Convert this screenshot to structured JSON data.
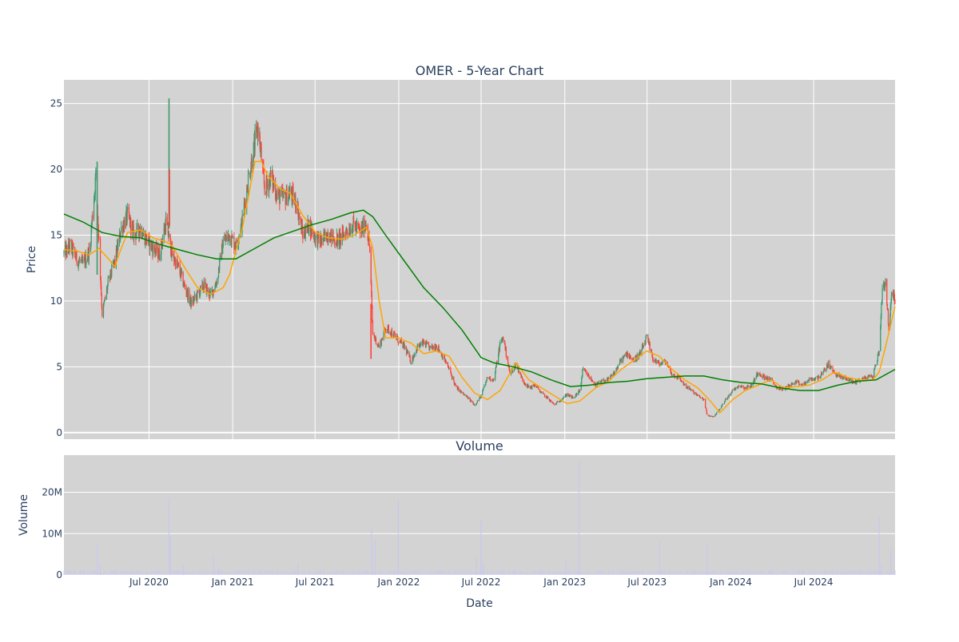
{
  "chart": {
    "title": "OMER - 5-Year Chart",
    "price_panel": {
      "ylabel": "Price",
      "ylim": [
        -0.5,
        26.8
      ],
      "yticks": [
        0,
        5,
        10,
        15,
        20,
        25
      ],
      "background": "#d3d3d3",
      "grid": true
    },
    "volume_panel": {
      "title": "Volume",
      "ylabel": "Volume",
      "ylim": [
        0,
        29000000
      ],
      "yticks": [
        0,
        10000000,
        20000000
      ],
      "ytick_labels": [
        "0",
        "10M",
        "20M"
      ],
      "background": "#d3d3d3",
      "bar_color": "#c8c8f0"
    },
    "xlabel": "Date",
    "x_range": [
      "2019-12-27",
      "2024-12-27"
    ],
    "x_ticks": [
      "2020-07-01",
      "2021-01-01",
      "2021-07-01",
      "2022-01-01",
      "2022-07-01",
      "2023-01-01",
      "2023-07-01",
      "2024-01-01",
      "2024-07-01"
    ],
    "x_tick_labels": [
      "Jul 2020",
      "Jan 2021",
      "Jul 2021",
      "Jan 2022",
      "Jul 2022",
      "Jan 2023",
      "Jul 2023",
      "Jan 2024",
      "Jul 2024"
    ],
    "colors": {
      "up": "#3d9970",
      "down": "#ff4136",
      "ma_short": "#ffa500",
      "ma_long": "#008000",
      "grid": "#ffffff",
      "text": "#2a3f5f"
    }
  },
  "chart_data": [
    {
      "type": "candlestick",
      "panel": "price",
      "close_path": [
        [
          "2019-12-27",
          13.6
        ],
        [
          "2020-01-10",
          14.2
        ],
        [
          "2020-01-24",
          13.2
        ],
        [
          "2020-02-07",
          12.8
        ],
        [
          "2020-02-21",
          13.8
        ],
        [
          "2020-03-06",
          19.5
        ],
        [
          "2020-03-13",
          14.5
        ],
        [
          "2020-03-20",
          9.0
        ],
        [
          "2020-04-03",
          11.5
        ],
        [
          "2020-04-17",
          13.0
        ],
        [
          "2020-05-01",
          15.5
        ],
        [
          "2020-05-15",
          16.5
        ],
        [
          "2020-05-29",
          15.0
        ],
        [
          "2020-06-12",
          15.5
        ],
        [
          "2020-06-26",
          14.6
        ],
        [
          "2020-07-10",
          14.0
        ],
        [
          "2020-07-24",
          13.5
        ],
        [
          "2020-08-07",
          16.0
        ],
        [
          "2020-08-21",
          13.5
        ],
        [
          "2020-09-04",
          12.5
        ],
        [
          "2020-09-18",
          11.0
        ],
        [
          "2020-10-02",
          9.8
        ],
        [
          "2020-10-16",
          10.5
        ],
        [
          "2020-10-30",
          11.2
        ],
        [
          "2020-11-13",
          10.4
        ],
        [
          "2020-11-27",
          11.5
        ],
        [
          "2020-12-11",
          14.5
        ],
        [
          "2020-12-25",
          15.0
        ],
        [
          "2021-01-08",
          14.2
        ],
        [
          "2021-01-22",
          16.0
        ],
        [
          "2021-02-05",
          19.5
        ],
        [
          "2021-02-19",
          22.0
        ],
        [
          "2021-02-26",
          23.2
        ],
        [
          "2021-03-12",
          18.5
        ],
        [
          "2021-03-26",
          19.5
        ],
        [
          "2021-04-09",
          18.0
        ],
        [
          "2021-04-23",
          17.8
        ],
        [
          "2021-05-07",
          18.2
        ],
        [
          "2021-05-21",
          17.5
        ],
        [
          "2021-06-04",
          15.0
        ],
        [
          "2021-06-18",
          15.8
        ],
        [
          "2021-07-02",
          14.8
        ],
        [
          "2021-07-16",
          14.5
        ],
        [
          "2021-07-30",
          15.2
        ],
        [
          "2021-08-13",
          14.6
        ],
        [
          "2021-08-27",
          14.8
        ],
        [
          "2021-09-10",
          15.4
        ],
        [
          "2021-09-24",
          15.8
        ],
        [
          "2021-10-08",
          15.2
        ],
        [
          "2021-10-22",
          16.0
        ],
        [
          "2021-10-29",
          14.0
        ],
        [
          "2021-11-05",
          7.5
        ],
        [
          "2021-11-19",
          6.5
        ],
        [
          "2021-12-03",
          8.0
        ],
        [
          "2021-12-17",
          7.6
        ],
        [
          "2021-12-31",
          7.0
        ],
        [
          "2022-01-14",
          6.5
        ],
        [
          "2022-01-28",
          5.4
        ],
        [
          "2022-02-11",
          6.5
        ],
        [
          "2022-02-25",
          6.8
        ],
        [
          "2022-03-11",
          6.4
        ],
        [
          "2022-03-25",
          6.6
        ],
        [
          "2022-04-08",
          5.8
        ],
        [
          "2022-04-22",
          4.8
        ],
        [
          "2022-05-06",
          3.5
        ],
        [
          "2022-05-20",
          3.0
        ],
        [
          "2022-06-03",
          2.6
        ],
        [
          "2022-06-17",
          2.1
        ],
        [
          "2022-07-01",
          2.8
        ],
        [
          "2022-07-15",
          4.2
        ],
        [
          "2022-07-29",
          4.0
        ],
        [
          "2022-08-12",
          6.8
        ],
        [
          "2022-08-19",
          7.2
        ],
        [
          "2022-09-02",
          4.5
        ],
        [
          "2022-09-16",
          5.2
        ],
        [
          "2022-09-30",
          4.0
        ],
        [
          "2022-10-14",
          3.4
        ],
        [
          "2022-10-28",
          3.6
        ],
        [
          "2022-11-11",
          3.0
        ],
        [
          "2022-11-25",
          2.6
        ],
        [
          "2022-12-09",
          2.1
        ],
        [
          "2022-12-23",
          2.5
        ],
        [
          "2023-01-06",
          2.9
        ],
        [
          "2023-01-20",
          2.6
        ],
        [
          "2023-02-03",
          3.2
        ],
        [
          "2023-02-10",
          4.8
        ],
        [
          "2023-02-24",
          4.2
        ],
        [
          "2023-03-10",
          3.6
        ],
        [
          "2023-03-24",
          3.9
        ],
        [
          "2023-04-07",
          4.0
        ],
        [
          "2023-04-21",
          4.6
        ],
        [
          "2023-05-05",
          5.5
        ],
        [
          "2023-05-19",
          6.0
        ],
        [
          "2023-06-02",
          5.5
        ],
        [
          "2023-06-16",
          6.0
        ],
        [
          "2023-06-30",
          7.2
        ],
        [
          "2023-07-14",
          5.6
        ],
        [
          "2023-07-28",
          5.2
        ],
        [
          "2023-08-11",
          5.4
        ],
        [
          "2023-08-25",
          4.4
        ],
        [
          "2023-09-08",
          4.2
        ],
        [
          "2023-09-22",
          3.6
        ],
        [
          "2023-10-06",
          3.2
        ],
        [
          "2023-10-20",
          2.8
        ],
        [
          "2023-11-03",
          2.5
        ],
        [
          "2023-11-10",
          1.3
        ],
        [
          "2023-11-24",
          1.2
        ],
        [
          "2023-12-08",
          1.8
        ],
        [
          "2023-12-22",
          2.6
        ],
        [
          "2024-01-05",
          3.2
        ],
        [
          "2024-01-19",
          3.6
        ],
        [
          "2024-02-02",
          3.4
        ],
        [
          "2024-02-16",
          3.6
        ],
        [
          "2024-03-01",
          4.6
        ],
        [
          "2024-03-15",
          4.2
        ],
        [
          "2024-03-29",
          4.0
        ],
        [
          "2024-04-12",
          3.4
        ],
        [
          "2024-04-26",
          3.3
        ],
        [
          "2024-05-10",
          3.6
        ],
        [
          "2024-05-24",
          3.8
        ],
        [
          "2024-06-07",
          3.6
        ],
        [
          "2024-06-21",
          4.0
        ],
        [
          "2024-07-05",
          4.1
        ],
        [
          "2024-07-19",
          4.4
        ],
        [
          "2024-08-02",
          5.2
        ],
        [
          "2024-08-16",
          4.5
        ],
        [
          "2024-08-30",
          4.2
        ],
        [
          "2024-09-13",
          4.1
        ],
        [
          "2024-09-27",
          3.8
        ],
        [
          "2024-10-11",
          4.0
        ],
        [
          "2024-10-25",
          4.2
        ],
        [
          "2024-11-08",
          4.3
        ],
        [
          "2024-11-22",
          6.2
        ],
        [
          "2024-11-29",
          11.0
        ],
        [
          "2024-12-06",
          11.5
        ],
        [
          "2024-12-13",
          8.0
        ],
        [
          "2024-12-20",
          10.5
        ],
        [
          "2024-12-27",
          10.2
        ]
      ],
      "spikes": [
        [
          "2020-03-09",
          12.0,
          20.6,
          "up"
        ],
        [
          "2020-08-14",
          15.5,
          25.4,
          "up"
        ],
        [
          "2020-08-15",
          15.7,
          20.0,
          "down"
        ],
        [
          "2021-11-01",
          5.6,
          9.8,
          "down"
        ]
      ]
    },
    {
      "type": "line",
      "panel": "price",
      "series_role": "short moving average",
      "points": [
        [
          "2019-12-27",
          13.9
        ],
        [
          "2020-01-24",
          13.8
        ],
        [
          "2020-02-21",
          13.5
        ],
        [
          "2020-03-13",
          14.0
        ],
        [
          "2020-04-03",
          13.2
        ],
        [
          "2020-04-17",
          12.6
        ],
        [
          "2020-05-01",
          14.0
        ],
        [
          "2020-05-15",
          15.2
        ],
        [
          "2020-06-12",
          15.4
        ],
        [
          "2020-07-10",
          14.8
        ],
        [
          "2020-08-07",
          14.5
        ],
        [
          "2020-08-21",
          14.2
        ],
        [
          "2020-09-18",
          12.5
        ],
        [
          "2020-10-16",
          11.0
        ],
        [
          "2020-11-13",
          10.5
        ],
        [
          "2020-12-11",
          11.0
        ],
        [
          "2020-12-25",
          12.0
        ],
        [
          "2021-01-08",
          13.8
        ],
        [
          "2021-01-22",
          15.5
        ],
        [
          "2021-02-05",
          18.0
        ],
        [
          "2021-02-19",
          20.6
        ],
        [
          "2021-03-05",
          20.6
        ],
        [
          "2021-03-19",
          19.5
        ],
        [
          "2021-04-16",
          18.5
        ],
        [
          "2021-05-07",
          18.2
        ],
        [
          "2021-06-04",
          16.5
        ],
        [
          "2021-07-02",
          15.2
        ],
        [
          "2021-07-30",
          14.8
        ],
        [
          "2021-08-27",
          14.7
        ],
        [
          "2021-09-24",
          15.0
        ],
        [
          "2021-10-22",
          15.6
        ],
        [
          "2021-11-05",
          14.0
        ],
        [
          "2021-11-19",
          10.0
        ],
        [
          "2021-12-03",
          7.2
        ],
        [
          "2021-12-31",
          7.2
        ],
        [
          "2022-01-28",
          6.8
        ],
        [
          "2022-02-25",
          6.0
        ],
        [
          "2022-03-25",
          6.2
        ],
        [
          "2022-04-22",
          5.8
        ],
        [
          "2022-05-20",
          4.2
        ],
        [
          "2022-06-17",
          3.0
        ],
        [
          "2022-07-15",
          2.5
        ],
        [
          "2022-08-12",
          3.2
        ],
        [
          "2022-09-02",
          4.5
        ],
        [
          "2022-09-16",
          5.3
        ],
        [
          "2022-10-14",
          4.0
        ],
        [
          "2022-11-11",
          3.4
        ],
        [
          "2022-12-09",
          2.8
        ],
        [
          "2023-01-06",
          2.2
        ],
        [
          "2023-02-03",
          2.4
        ],
        [
          "2023-03-10",
          3.4
        ],
        [
          "2023-04-07",
          3.9
        ],
        [
          "2023-05-05",
          4.8
        ],
        [
          "2023-06-02",
          5.5
        ],
        [
          "2023-06-30",
          6.2
        ],
        [
          "2023-07-28",
          5.8
        ],
        [
          "2023-08-25",
          4.8
        ],
        [
          "2023-09-22",
          4.0
        ],
        [
          "2023-10-20",
          3.4
        ],
        [
          "2023-11-17",
          2.4
        ],
        [
          "2023-12-08",
          1.5
        ],
        [
          "2024-01-05",
          2.5
        ],
        [
          "2024-02-02",
          3.2
        ],
        [
          "2024-03-01",
          3.6
        ],
        [
          "2024-03-29",
          4.0
        ],
        [
          "2024-04-26",
          3.4
        ],
        [
          "2024-05-24",
          3.5
        ],
        [
          "2024-06-21",
          3.6
        ],
        [
          "2024-07-19",
          4.0
        ],
        [
          "2024-08-16",
          4.6
        ],
        [
          "2024-09-13",
          4.2
        ],
        [
          "2024-10-11",
          4.0
        ],
        [
          "2024-11-08",
          4.0
        ],
        [
          "2024-11-22",
          4.6
        ],
        [
          "2024-12-06",
          6.5
        ],
        [
          "2024-12-27",
          9.6
        ]
      ]
    },
    {
      "type": "line",
      "panel": "price",
      "series_role": "long moving average",
      "points": [
        [
          "2019-12-27",
          16.6
        ],
        [
          "2020-02-07",
          16.0
        ],
        [
          "2020-03-20",
          15.2
        ],
        [
          "2020-05-01",
          14.9
        ],
        [
          "2020-06-12",
          14.8
        ],
        [
          "2020-07-24",
          14.3
        ],
        [
          "2020-09-04",
          13.9
        ],
        [
          "2020-10-16",
          13.5
        ],
        [
          "2020-11-27",
          13.2
        ],
        [
          "2021-01-08",
          13.2
        ],
        [
          "2021-02-19",
          14.0
        ],
        [
          "2021-04-02",
          14.8
        ],
        [
          "2021-05-14",
          15.3
        ],
        [
          "2021-06-25",
          15.8
        ],
        [
          "2021-08-06",
          16.2
        ],
        [
          "2021-09-17",
          16.7
        ],
        [
          "2021-10-15",
          16.9
        ],
        [
          "2021-11-05",
          16.4
        ],
        [
          "2021-12-03",
          15.0
        ],
        [
          "2022-01-14",
          13.0
        ],
        [
          "2022-02-25",
          11.0
        ],
        [
          "2022-04-08",
          9.5
        ],
        [
          "2022-05-20",
          7.8
        ],
        [
          "2022-07-01",
          5.7
        ],
        [
          "2022-07-29",
          5.3
        ],
        [
          "2022-09-09",
          5.0
        ],
        [
          "2022-10-21",
          4.6
        ],
        [
          "2022-12-02",
          4.0
        ],
        [
          "2023-01-13",
          3.5
        ],
        [
          "2023-02-24",
          3.6
        ],
        [
          "2023-04-07",
          3.8
        ],
        [
          "2023-05-19",
          3.9
        ],
        [
          "2023-06-30",
          4.1
        ],
        [
          "2023-08-11",
          4.2
        ],
        [
          "2023-09-22",
          4.3
        ],
        [
          "2023-11-03",
          4.3
        ],
        [
          "2023-12-15",
          4.0
        ],
        [
          "2024-01-26",
          3.8
        ],
        [
          "2024-03-08",
          3.7
        ],
        [
          "2024-04-19",
          3.4
        ],
        [
          "2024-05-31",
          3.2
        ],
        [
          "2024-07-12",
          3.2
        ],
        [
          "2024-08-23",
          3.6
        ],
        [
          "2024-10-04",
          3.9
        ],
        [
          "2024-11-15",
          4.0
        ],
        [
          "2024-12-27",
          4.8
        ]
      ]
    },
    {
      "type": "bar",
      "panel": "volume",
      "baseline": 700000,
      "spikes": [
        [
          "2020-03-09",
          7600000
        ],
        [
          "2020-03-16",
          2500000
        ],
        [
          "2020-08-14",
          18700000
        ],
        [
          "2020-08-17",
          9500000
        ],
        [
          "2020-09-14",
          2600000
        ],
        [
          "2020-11-20",
          4800000
        ],
        [
          "2020-12-01",
          2000000
        ],
        [
          "2021-05-25",
          3000000
        ],
        [
          "2021-11-02",
          11000000
        ],
        [
          "2021-11-10",
          8500000
        ],
        [
          "2021-12-31",
          18300000
        ],
        [
          "2022-06-20",
          4000000
        ],
        [
          "2022-07-01",
          13200000
        ],
        [
          "2022-07-06",
          3000000
        ],
        [
          "2023-01-04",
          3500000
        ],
        [
          "2023-02-01",
          27500000
        ],
        [
          "2023-07-28",
          8000000
        ],
        [
          "2023-11-10",
          7000000
        ],
        [
          "2024-11-22",
          14000000
        ],
        [
          "2024-11-27",
          2500000
        ],
        [
          "2024-12-18",
          6000000
        ]
      ]
    }
  ]
}
